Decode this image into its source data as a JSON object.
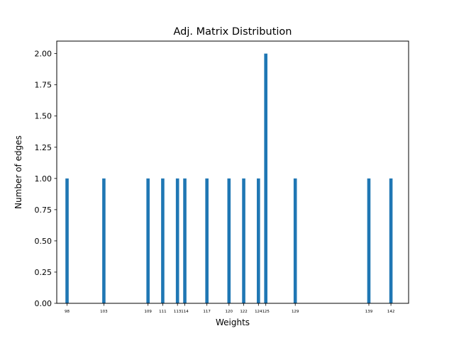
{
  "chart_data": {
    "type": "bar",
    "title": "Adj. Matrix Distribution",
    "xlabel": "Weights",
    "ylabel": "Number of edges",
    "bar_color": "#1f77b4",
    "x": [
      98,
      103,
      109,
      111,
      113,
      114,
      117,
      120,
      122,
      124,
      125,
      129,
      139,
      142
    ],
    "values": [
      1,
      1,
      1,
      1,
      1,
      1,
      1,
      1,
      1,
      1,
      2,
      1,
      1,
      1
    ],
    "xtick_labels": [
      "98",
      "103",
      "109",
      "111",
      "113",
      "114",
      "117",
      "120",
      "122",
      "124",
      "125",
      "129",
      "139",
      "142"
    ],
    "xlim": [
      96.6,
      144.4
    ],
    "ylim": [
      0,
      2.1
    ],
    "yticks": [
      0.0,
      0.25,
      0.5,
      0.75,
      1.0,
      1.25,
      1.5,
      1.75,
      2.0
    ],
    "ytick_labels": [
      "0.00",
      "0.25",
      "0.50",
      "0.75",
      "1.00",
      "1.25",
      "1.50",
      "1.75",
      "2.00"
    ],
    "grid": false,
    "legend": false
  }
}
